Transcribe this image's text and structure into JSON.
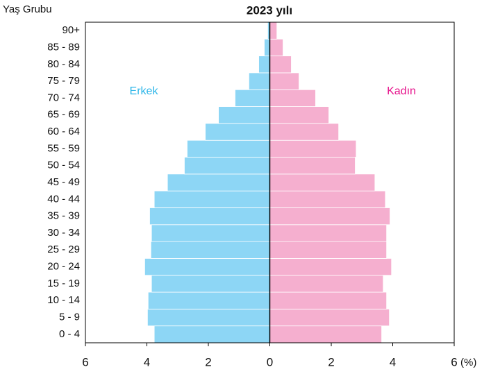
{
  "chart_data": {
    "type": "pyramid",
    "title": "2023 yılı",
    "y_label": "Yaş Grubu",
    "x_unit": "(%)",
    "categories": [
      "0 - 4",
      "5 - 9",
      "10 - 14",
      "15 - 19",
      "20 - 24",
      "25 - 29",
      "30 - 34",
      "35 - 39",
      "40 - 44",
      "45 - 49",
      "50 - 54",
      "55 - 59",
      "60 - 64",
      "65 - 69",
      "70 - 74",
      "75 - 79",
      "80 - 84",
      "85 - 89",
      "90+"
    ],
    "series": [
      {
        "name": "Erkek",
        "color": "#8dd6f5",
        "label_color": "#2bb5e8",
        "values": [
          3.76,
          3.98,
          3.96,
          3.85,
          4.07,
          3.87,
          3.85,
          3.91,
          3.76,
          3.33,
          2.78,
          2.69,
          2.1,
          1.67,
          1.13,
          0.68,
          0.36,
          0.18,
          0.07
        ]
      },
      {
        "name": "Kadın",
        "color": "#f5afcf",
        "label_color": "#e6148c",
        "values": [
          3.64,
          3.89,
          3.8,
          3.69,
          3.96,
          3.8,
          3.8,
          3.91,
          3.76,
          3.42,
          2.78,
          2.81,
          2.24,
          1.92,
          1.49,
          0.95,
          0.7,
          0.43,
          0.23
        ]
      }
    ],
    "xlim": [
      -6,
      6
    ],
    "xticks": [
      {
        "value": -6,
        "label": "6"
      },
      {
        "value": -4,
        "label": "4"
      },
      {
        "value": -2,
        "label": "2"
      },
      0,
      2,
      4,
      6
    ]
  }
}
